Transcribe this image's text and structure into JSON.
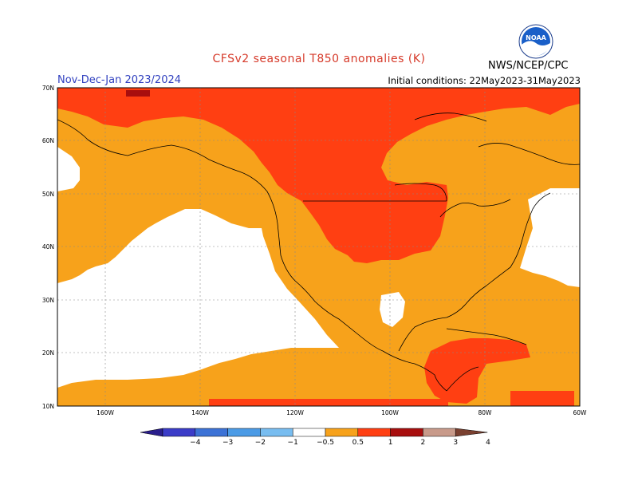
{
  "title": "CFSv2 seasonal T850 anomalies (K)",
  "period": "Nov-Dec-Jan 2023/2024",
  "initial_conditions": "Initial conditions: 22May2023-31May2023",
  "agency": "NWS/NCEP/CPC",
  "logo_text": "NOAA",
  "lat_labels": [
    "70N",
    "60N",
    "50N",
    "40N",
    "30N",
    "20N",
    "10N"
  ],
  "lon_labels": [
    "160W",
    "140W",
    "120W",
    "100W",
    "80W",
    "60W"
  ],
  "colorbar": {
    "ticks": [
      "−4",
      "−3",
      "−2",
      "−1",
      "−0.5",
      "0.5",
      "1",
      "2",
      "3",
      "4"
    ],
    "colors": [
      "#2a1e8c",
      "#3b3cc8",
      "#3c72d6",
      "#4b9be6",
      "#78bdf0",
      "#ffffff",
      "#f7a21b",
      "#ff3f12",
      "#a80e0e",
      "#c89a8a",
      "#7a4030"
    ]
  },
  "legend_colors": {
    "white": "#ffffff",
    "orange": "#f7a21b",
    "red": "#ff3f12",
    "darkred": "#a80e0e"
  }
}
